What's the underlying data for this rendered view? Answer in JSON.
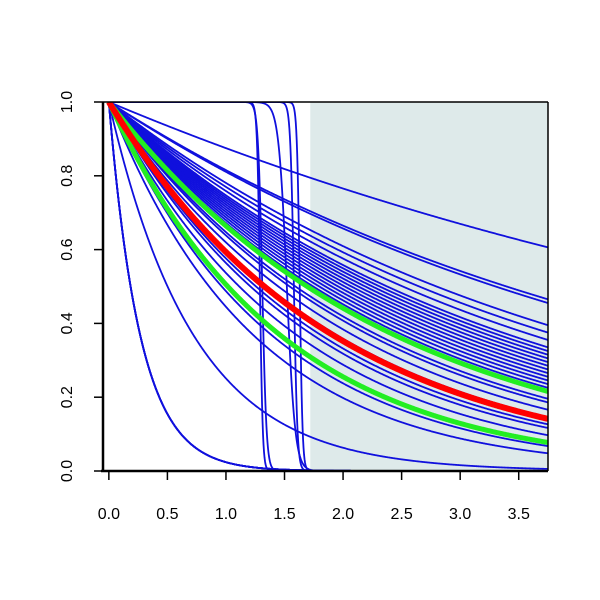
{
  "chart_data": {
    "type": "line",
    "title": "",
    "xlabel": "",
    "ylabel": "",
    "xlim": [
      -0.05,
      3.75
    ],
    "ylim": [
      0,
      1
    ],
    "x_ticks": [
      0.0,
      0.5,
      1.0,
      1.5,
      2.0,
      2.5,
      3.0,
      3.5
    ],
    "x_tick_labels": [
      "0.0",
      "0.5",
      "1.0",
      "1.5",
      "2.0",
      "2.5",
      "3.0",
      "3.5"
    ],
    "y_ticks": [
      0.0,
      0.2,
      0.4,
      0.6,
      0.8,
      1.0
    ],
    "y_tick_labels": [
      "0.0",
      "0.2",
      "0.4",
      "0.6",
      "0.8",
      "1.0"
    ],
    "grid": false,
    "shaded_region": {
      "x_from": 1.72,
      "x_to": 3.75,
      "color": "#deeaea"
    },
    "colors": {
      "blue": "#1010dd",
      "red": "#ff0000",
      "green": "#22ee22",
      "axis": "#000000"
    },
    "series": [
      {
        "color": "blue",
        "kind": "exp",
        "y_at_3_7": 0.61
      },
      {
        "color": "blue",
        "kind": "exp",
        "y_at_3_7": 0.47
      },
      {
        "color": "blue",
        "kind": "exp",
        "y_at_3_7": 0.46
      },
      {
        "color": "blue",
        "kind": "exp",
        "y_at_3_7": 0.4
      },
      {
        "color": "blue",
        "kind": "exp",
        "y_at_3_7": 0.38
      },
      {
        "color": "blue",
        "kind": "exp",
        "y_at_3_7": 0.36
      },
      {
        "color": "blue",
        "kind": "exp",
        "y_at_3_7": 0.34
      },
      {
        "color": "blue",
        "kind": "exp",
        "y_at_3_7": 0.33
      },
      {
        "color": "blue",
        "kind": "exp",
        "y_at_3_7": 0.32
      },
      {
        "color": "blue",
        "kind": "exp",
        "y_at_3_7": 0.31
      },
      {
        "color": "blue",
        "kind": "exp",
        "y_at_3_7": 0.3
      },
      {
        "color": "blue",
        "kind": "exp",
        "y_at_3_7": 0.29
      },
      {
        "color": "blue",
        "kind": "exp",
        "y_at_3_7": 0.28
      },
      {
        "color": "blue",
        "kind": "exp",
        "y_at_3_7": 0.27
      },
      {
        "color": "blue",
        "kind": "exp",
        "y_at_3_7": 0.26
      },
      {
        "color": "blue",
        "kind": "exp",
        "y_at_3_7": 0.25
      },
      {
        "color": "blue",
        "kind": "exp",
        "y_at_3_7": 0.24
      },
      {
        "color": "blue",
        "kind": "exp",
        "y_at_3_7": 0.23
      },
      {
        "color": "blue",
        "kind": "exp",
        "y_at_3_7": 0.22
      },
      {
        "color": "blue",
        "kind": "exp",
        "y_at_3_7": 0.2
      },
      {
        "color": "blue",
        "kind": "exp",
        "y_at_3_7": 0.19
      },
      {
        "color": "blue",
        "kind": "exp",
        "y_at_3_7": 0.17
      },
      {
        "color": "blue",
        "kind": "exp",
        "y_at_3_7": 0.15
      },
      {
        "color": "blue",
        "kind": "exp",
        "y_at_3_7": 0.13
      },
      {
        "color": "blue",
        "kind": "exp",
        "y_at_3_7": 0.12
      },
      {
        "color": "blue",
        "kind": "exp",
        "y_at_3_7": 0.1
      },
      {
        "color": "blue",
        "kind": "exp",
        "y_at_3_7": 0.07
      },
      {
        "color": "blue",
        "kind": "exp",
        "y_at_3_7": 0.05
      },
      {
        "color": "blue",
        "kind": "exp",
        "y_at_3_7": 0.006
      },
      {
        "color": "blue",
        "kind": "exp",
        "y_at_3_7": 0.0
      },
      {
        "color": "blue",
        "kind": "exp",
        "y_at_3_7": 0.0
      },
      {
        "color": "blue",
        "kind": "exp",
        "y_at_3_7": 0.0
      },
      {
        "color": "blue",
        "kind": "exp",
        "y_at_3_7": 0.0
      },
      {
        "color": "blue",
        "kind": "exp",
        "y_at_3_7": 0.0
      },
      {
        "color": "blue",
        "kind": "step",
        "x_drop": 1.29,
        "width": 0.012
      },
      {
        "color": "blue",
        "kind": "step",
        "x_drop": 1.31,
        "width": 0.018
      },
      {
        "color": "blue",
        "kind": "step",
        "x_drop": 1.52,
        "width": 0.035
      },
      {
        "color": "blue",
        "kind": "step",
        "x_drop": 1.58,
        "width": 0.015
      },
      {
        "color": "blue",
        "kind": "step",
        "x_drop": 1.63,
        "width": 0.012
      },
      {
        "color": "green",
        "kind": "exp",
        "y_at_3_7": 0.22
      },
      {
        "color": "green",
        "kind": "exp",
        "y_at_3_7": 0.08
      },
      {
        "color": "red",
        "kind": "exp",
        "y_at_3_7": 0.145
      }
    ]
  }
}
